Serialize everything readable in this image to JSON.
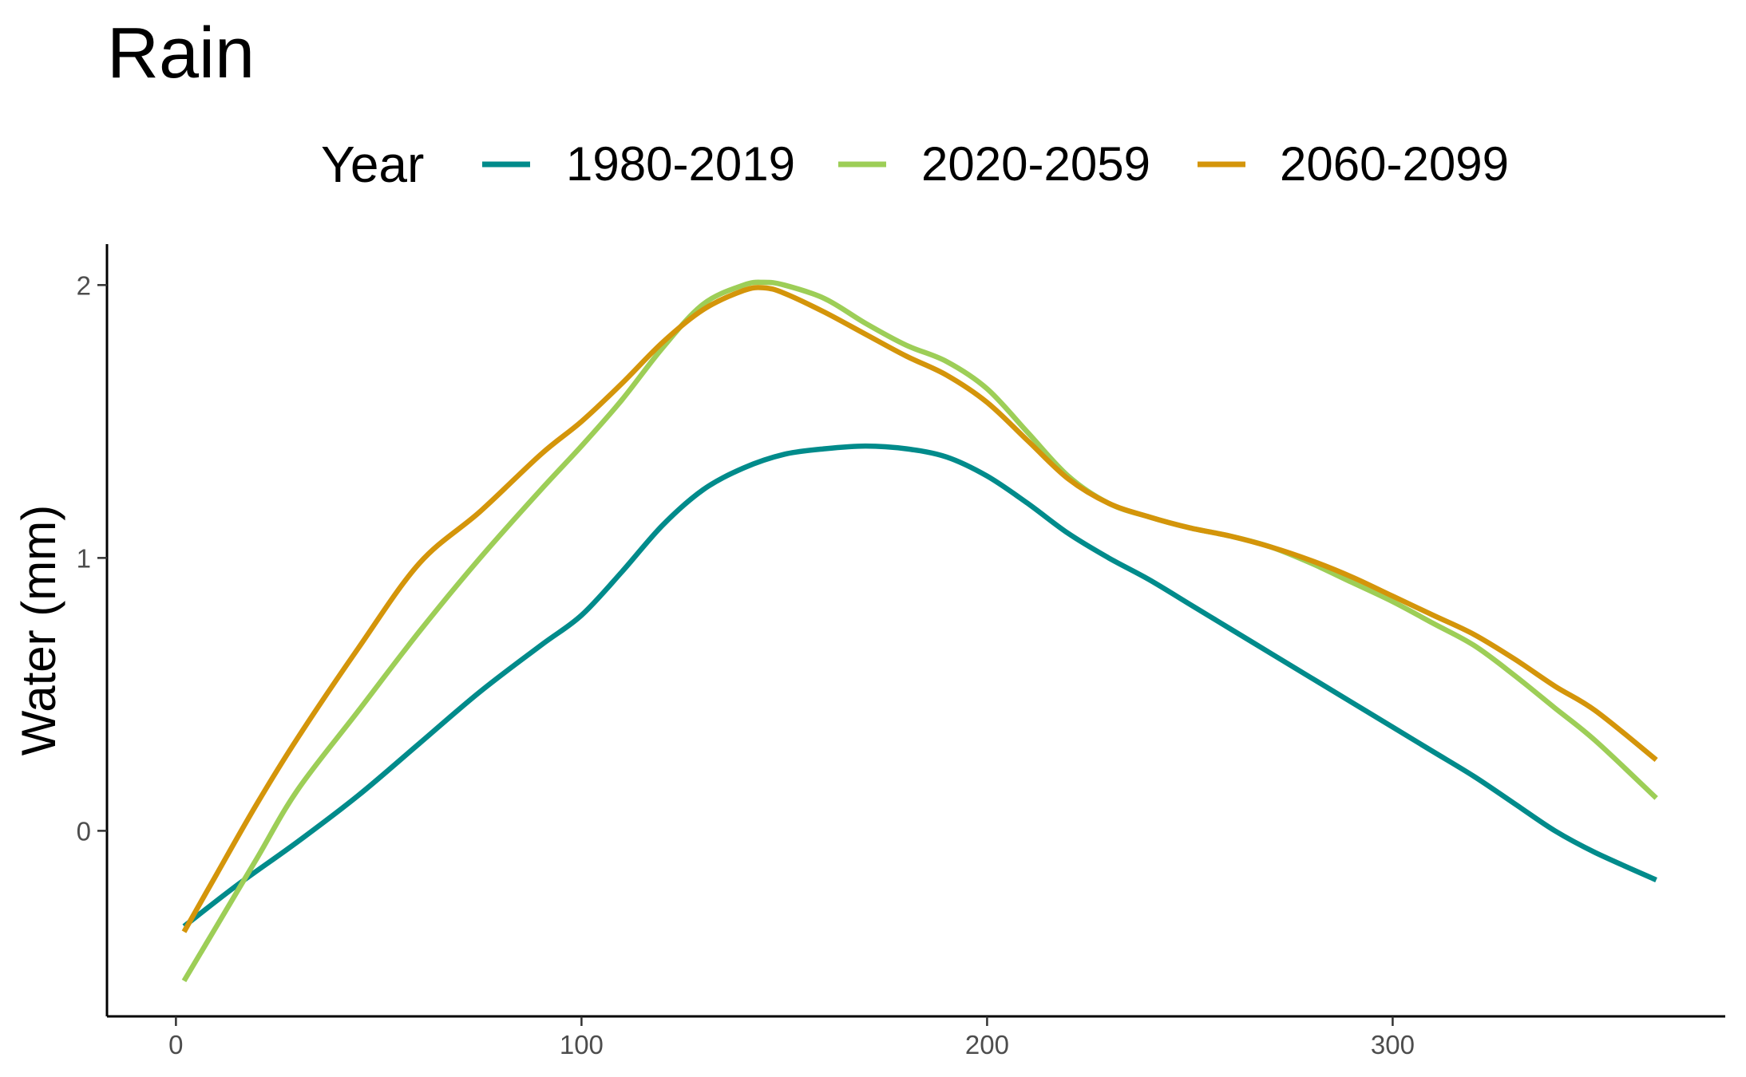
{
  "chart_data": {
    "type": "line",
    "title": "Rain",
    "xlabel": "",
    "ylabel": "Water (mm)",
    "xlim": [
      -17,
      382
    ],
    "ylim": [
      -0.68,
      2.15
    ],
    "x_ticks": [
      0,
      100,
      200,
      300
    ],
    "y_ticks": [
      0,
      1,
      2
    ],
    "grid": false,
    "legend": {
      "title": "Year",
      "placement": "top"
    },
    "series": [
      {
        "name": "1980-2019",
        "color": "#008B8B",
        "x": [
          2,
          15,
          30,
          45,
          60,
          75,
          90,
          100,
          110,
          120,
          130,
          140,
          150,
          160,
          170,
          180,
          190,
          200,
          210,
          220,
          230,
          240,
          250,
          260,
          270,
          280,
          290,
          300,
          310,
          320,
          330,
          340,
          350,
          365
        ],
        "y": [
          -0.35,
          -0.2,
          -0.04,
          0.13,
          0.32,
          0.51,
          0.68,
          0.79,
          0.95,
          1.12,
          1.25,
          1.33,
          1.38,
          1.4,
          1.41,
          1.4,
          1.37,
          1.3,
          1.2,
          1.09,
          1.0,
          0.92,
          0.83,
          0.74,
          0.65,
          0.56,
          0.47,
          0.38,
          0.29,
          0.2,
          0.1,
          0.0,
          -0.08,
          -0.18
        ]
      },
      {
        "name": "2020-2059",
        "color": "#9DCE57",
        "x": [
          2,
          10,
          20,
          30,
          45,
          60,
          75,
          90,
          100,
          110,
          120,
          130,
          140,
          145,
          150,
          160,
          170,
          180,
          190,
          200,
          210,
          220,
          230,
          240,
          250,
          260,
          270,
          280,
          290,
          300,
          310,
          320,
          330,
          340,
          350,
          365
        ],
        "y": [
          -0.55,
          -0.35,
          -0.1,
          0.15,
          0.44,
          0.73,
          1.0,
          1.25,
          1.41,
          1.58,
          1.77,
          1.93,
          2.0,
          2.01,
          2.0,
          1.95,
          1.86,
          1.78,
          1.72,
          1.62,
          1.46,
          1.3,
          1.2,
          1.15,
          1.11,
          1.08,
          1.04,
          0.98,
          0.91,
          0.84,
          0.76,
          0.68,
          0.57,
          0.45,
          0.33,
          0.12
        ]
      },
      {
        "name": "2060-2099",
        "color": "#D4950A",
        "x": [
          2,
          10,
          20,
          30,
          45,
          60,
          75,
          90,
          100,
          110,
          120,
          130,
          140,
          145,
          150,
          160,
          170,
          180,
          190,
          200,
          210,
          220,
          230,
          240,
          250,
          260,
          270,
          280,
          290,
          300,
          310,
          320,
          330,
          340,
          350,
          365
        ],
        "y": [
          -0.37,
          -0.16,
          0.1,
          0.34,
          0.67,
          0.98,
          1.17,
          1.38,
          1.5,
          1.64,
          1.79,
          1.91,
          1.98,
          1.99,
          1.97,
          1.9,
          1.82,
          1.74,
          1.67,
          1.57,
          1.43,
          1.29,
          1.2,
          1.15,
          1.11,
          1.08,
          1.04,
          0.99,
          0.93,
          0.86,
          0.79,
          0.72,
          0.63,
          0.53,
          0.44,
          0.26
        ]
      }
    ]
  }
}
